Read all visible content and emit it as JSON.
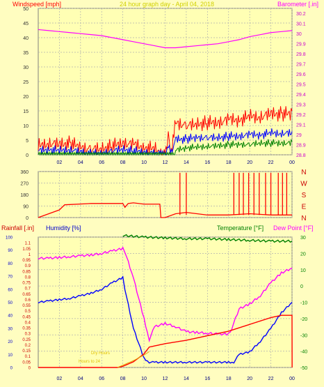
{
  "chart_data": [
    {
      "panel": "wind-baro",
      "type": "line",
      "title": "24 hour graph day - April 04, 2018",
      "left_label": "Windspeed [mph]",
      "right_label": "Barometer [.in]",
      "ylim": [
        0,
        50
      ],
      "y2lim": [
        28.8,
        30.25
      ],
      "x_ticks": [
        "02",
        "04",
        "06",
        "08",
        "10",
        "12",
        "14",
        "16",
        "18",
        "20",
        "22",
        "00"
      ],
      "y_ticks": [
        "0",
        "5",
        "10",
        "15",
        "20",
        "25",
        "30",
        "35",
        "40",
        "45",
        "50"
      ],
      "y2_ticks": [
        "28.8",
        "28.9",
        "29",
        "29.1",
        "29.2",
        "29.3",
        "29.4",
        "29.5",
        "29.6",
        "29.7",
        "29.8",
        "29.9",
        "30",
        "30.1",
        "30.2"
      ],
      "series": [
        {
          "name": "Barometer",
          "color": "#ff00ff",
          "axis": "right",
          "x": [
            0,
            1,
            2,
            3,
            4,
            5,
            6,
            7,
            8,
            9,
            10,
            11,
            12,
            13,
            14,
            15,
            16,
            17,
            18,
            19,
            20,
            21,
            22,
            23,
            24
          ],
          "y": [
            30.04,
            30.03,
            30.02,
            30.01,
            30.0,
            29.99,
            29.98,
            29.96,
            29.94,
            29.92,
            29.9,
            29.88,
            29.86,
            29.86,
            29.87,
            29.88,
            29.89,
            29.9,
            29.92,
            29.94,
            29.97,
            29.99,
            30.01,
            30.02,
            30.03
          ]
        },
        {
          "name": "Wind gust",
          "color": "#ff0000",
          "axis": "left",
          "x": [
            0,
            1,
            2,
            3,
            4,
            5,
            6,
            7,
            8,
            9,
            10,
            11,
            12,
            12.3,
            12.5,
            13,
            14,
            15,
            16,
            17,
            18,
            19,
            20,
            21,
            22,
            23,
            24
          ],
          "y": [
            4,
            5,
            4.5,
            5,
            3.5,
            3,
            3,
            4,
            5,
            4.5,
            3.5,
            3,
            0,
            8,
            1,
            12,
            11,
            11.5,
            12,
            12,
            13,
            13,
            14,
            14,
            15,
            15,
            15
          ]
        },
        {
          "name": "Wind average",
          "color": "#0000ff",
          "axis": "left",
          "x": [
            0,
            1,
            2,
            3,
            4,
            5,
            6,
            7,
            8,
            9,
            10,
            11,
            12,
            12.3,
            12.5,
            13,
            14,
            15,
            16,
            17,
            18,
            19,
            20,
            21,
            22,
            23,
            24
          ],
          "y": [
            2,
            2.5,
            2,
            2.5,
            1.5,
            1,
            1,
            2,
            2.5,
            2,
            1.5,
            1,
            0,
            4,
            0.5,
            6,
            6,
            6.5,
            6.5,
            6.5,
            7,
            7,
            7.5,
            7.5,
            8,
            8,
            8
          ]
        },
        {
          "name": "Wind low",
          "color": "#008000",
          "axis": "left",
          "x": [
            0,
            12.9,
            13,
            14,
            15,
            16,
            17,
            18,
            19,
            20,
            21,
            22,
            23,
            24
          ],
          "y": [
            0,
            0,
            2,
            3,
            3,
            3.5,
            3.5,
            4,
            4,
            4,
            4.5,
            4.5,
            4.5,
            4.5
          ]
        }
      ]
    },
    {
      "panel": "wind-direction",
      "type": "line",
      "y_ticks": [
        "0",
        "90",
        "180",
        "270",
        "360"
      ],
      "compass_labels": [
        "N",
        "W",
        "S",
        "E",
        "N"
      ],
      "ylim": [
        0,
        360
      ],
      "series": [
        {
          "name": "Wind direction",
          "color": "#ff0000",
          "x": [
            0,
            2,
            2.5,
            5,
            8,
            8.2,
            8.5,
            9,
            10,
            11.5,
            11.6,
            12,
            13,
            14,
            16,
            18,
            20,
            22,
            24
          ],
          "y": [
            0,
            60,
            100,
            110,
            110,
            80,
            110,
            115,
            105,
            105,
            0,
            0,
            30,
            40,
            20,
            20,
            30,
            20,
            20
          ],
          "spikes_x": [
            13.4,
            14.0,
            18.5,
            19.0,
            19.4,
            19.9,
            20.4,
            20.9,
            21.5,
            22.0,
            22.7,
            23.1,
            23.5
          ]
        }
      ]
    },
    {
      "panel": "rain-humidity-temp",
      "type": "line",
      "left_label_1": "Rainfall [.in]",
      "left_label_2": "Humidity [%]",
      "right_label_1": "Temperature [°F]",
      "right_label_2": "Dew Point [°F]",
      "ylim_rain": [
        0,
        1.15
      ],
      "ylim_humidity": [
        0,
        100
      ],
      "ylim_temp": [
        -50,
        30
      ],
      "x_ticks": [
        "02",
        "04",
        "06",
        "08",
        "10",
        "12",
        "14",
        "16",
        "18",
        "20",
        "22",
        "00"
      ],
      "rain_ticks": [
        "0",
        "0.05",
        "0.1",
        "0.15",
        "0.2",
        "0.25",
        "0.3",
        "0.35",
        "0.4",
        "0.45",
        "0.5",
        "0.55",
        "0.6",
        "0.65",
        "0.7",
        "0.75",
        "0.8",
        "0.85",
        "0.9",
        "0.95",
        "1",
        "1.05",
        "1.1"
      ],
      "humidity_ticks": [
        "0",
        "10",
        "20",
        "30",
        "40",
        "50",
        "60",
        "70",
        "80",
        "90",
        "100"
      ],
      "temp_ticks": [
        "-50",
        "-40",
        "-30",
        "-20",
        "-10",
        "0",
        "10",
        "20",
        "30"
      ],
      "overlay_text_1": "Dry Hours",
      "overlay_text_2": "Hours to 24",
      "series": [
        {
          "name": "Temperature",
          "color": "#008000",
          "axis": "temp",
          "x": [
            8,
            10,
            12,
            14,
            16,
            18,
            20,
            22,
            24
          ],
          "y": [
            31,
            30,
            29.5,
            29,
            29,
            28.5,
            28,
            27.5,
            27.5
          ]
        },
        {
          "name": "Dew Point",
          "color": "#ff00ff",
          "axis": "temp",
          "x": [
            0,
            1,
            2,
            3,
            4,
            5,
            6,
            7,
            8,
            8.2,
            9,
            10,
            10.5,
            11,
            12,
            13,
            14,
            15,
            16,
            17,
            18,
            18.3,
            19,
            20,
            21,
            22,
            23,
            24
          ],
          "y": [
            17,
            17,
            17.5,
            18,
            18.5,
            19,
            20,
            21.5,
            23,
            21,
            5,
            -20,
            -33,
            -25,
            -23,
            -25,
            -28,
            -28.5,
            -29,
            -29.5,
            -29.5,
            -26,
            -14,
            -11,
            -6,
            2,
            8,
            11
          ]
        },
        {
          "name": "Humidity",
          "color": "#0000ff",
          "axis": "humidity",
          "x": [
            0,
            1,
            2,
            3,
            4,
            5,
            6,
            7,
            8,
            8.2,
            9,
            10,
            10.5,
            11,
            12,
            14,
            16,
            18,
            18.5,
            19,
            20,
            21,
            22,
            23,
            24
          ],
          "y": [
            50,
            51,
            52,
            53,
            55,
            57,
            60,
            65,
            69,
            60,
            30,
            7,
            4,
            4,
            4,
            4,
            4,
            4,
            4,
            10,
            12,
            20,
            30,
            42,
            50
          ]
        },
        {
          "name": "Rainfall",
          "color": "#ff0000",
          "axis": "rain",
          "x": [
            0,
            7.5,
            8,
            9,
            10,
            10.5,
            12,
            14,
            16,
            18,
            20,
            22,
            23,
            24,
            24.01
          ],
          "y": [
            0,
            0,
            0.01,
            0.05,
            0.12,
            0.18,
            0.21,
            0.24,
            0.28,
            0.32,
            0.38,
            0.44,
            0.46,
            0.46,
            0
          ]
        },
        {
          "name": "Rain rate",
          "color": "#e0a000",
          "axis": "rain",
          "x": [
            7.5,
            8,
            9,
            10,
            10.5
          ],
          "y": [
            0,
            0.02,
            0.06,
            0.11,
            0.14
          ]
        }
      ]
    }
  ]
}
